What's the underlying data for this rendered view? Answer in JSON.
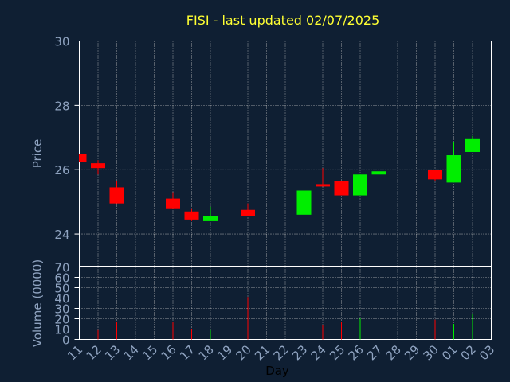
{
  "chart_data": [
    {
      "type": "candlestick",
      "title": "FISI - last updated 02/07/2025",
      "ylabel": "Price",
      "ylim": [
        23,
        30
      ],
      "yticks": [
        24,
        26,
        28,
        30
      ],
      "grid": true,
      "colors": {
        "up": "#00ee00",
        "down": "#ff0000",
        "background": "#0f1f33",
        "frame": "#ffffff",
        "grid": "#c0c0c0"
      },
      "categories": [
        "11",
        "12",
        "13",
        "14",
        "15",
        "16",
        "17",
        "18",
        "19",
        "20",
        "21",
        "22",
        "23",
        "24",
        "25",
        "26",
        "27",
        "28",
        "29",
        "30",
        "01",
        "02",
        "03"
      ],
      "candles": [
        {
          "x": "11",
          "open": 26.5,
          "high": 26.5,
          "low": 26.25,
          "close": 26.25
        },
        {
          "x": "12",
          "open": 26.2,
          "high": 26.3,
          "low": 25.85,
          "close": 26.05
        },
        {
          "x": "13",
          "open": 25.45,
          "high": 25.65,
          "low": 24.95,
          "close": 24.95
        },
        {
          "x": "16",
          "open": 25.1,
          "high": 25.3,
          "low": 24.8,
          "close": 24.8
        },
        {
          "x": "17",
          "open": 24.7,
          "high": 24.8,
          "low": 24.4,
          "close": 24.45
        },
        {
          "x": "18",
          "open": 24.4,
          "high": 24.85,
          "low": 24.4,
          "close": 24.55
        },
        {
          "x": "20",
          "open": 24.75,
          "high": 24.95,
          "low": 24.55,
          "close": 24.55
        },
        {
          "x": "23",
          "open": 24.6,
          "high": 25.35,
          "low": 24.6,
          "close": 25.35
        },
        {
          "x": "24",
          "open": 25.55,
          "high": 26.05,
          "low": 25.5,
          "close": 25.5
        },
        {
          "x": "25",
          "open": 25.65,
          "high": 25.65,
          "low": 25.2,
          "close": 25.2
        },
        {
          "x": "26",
          "open": 25.2,
          "high": 25.85,
          "low": 25.2,
          "close": 25.85
        },
        {
          "x": "27",
          "open": 25.85,
          "high": 26.05,
          "low": 25.85,
          "close": 25.95
        },
        {
          "x": "30",
          "open": 26.0,
          "high": 26.0,
          "low": 25.65,
          "close": 25.7
        },
        {
          "x": "01",
          "open": 25.6,
          "high": 26.85,
          "low": 25.6,
          "close": 26.45
        },
        {
          "x": "02",
          "open": 26.55,
          "high": 27.05,
          "low": 26.55,
          "close": 26.95
        }
      ]
    },
    {
      "type": "bar",
      "ylabel": "Volume (0000)",
      "xlabel": "Day",
      "ylim": [
        0,
        70
      ],
      "yticks": [
        0,
        10,
        20,
        30,
        40,
        50,
        60,
        70
      ],
      "grid": true,
      "categories": [
        "11",
        "12",
        "13",
        "14",
        "15",
        "16",
        "17",
        "18",
        "19",
        "20",
        "21",
        "22",
        "23",
        "24",
        "25",
        "26",
        "27",
        "28",
        "29",
        "30",
        "01",
        "02",
        "03"
      ],
      "volumes": [
        {
          "x": "12",
          "value": 9,
          "direction": "down"
        },
        {
          "x": "13",
          "value": 17,
          "direction": "down"
        },
        {
          "x": "16",
          "value": 17,
          "direction": "down"
        },
        {
          "x": "17",
          "value": 10,
          "direction": "down"
        },
        {
          "x": "18",
          "value": 9,
          "direction": "up"
        },
        {
          "x": "20",
          "value": 41,
          "direction": "down"
        },
        {
          "x": "23",
          "value": 24,
          "direction": "up"
        },
        {
          "x": "24",
          "value": 14,
          "direction": "down"
        },
        {
          "x": "25",
          "value": 17,
          "direction": "down"
        },
        {
          "x": "26",
          "value": 21,
          "direction": "up"
        },
        {
          "x": "27",
          "value": 65,
          "direction": "up"
        },
        {
          "x": "30",
          "value": 19,
          "direction": "down"
        },
        {
          "x": "01",
          "value": 15,
          "direction": "up"
        },
        {
          "x": "02",
          "value": 25,
          "direction": "up"
        }
      ]
    }
  ]
}
